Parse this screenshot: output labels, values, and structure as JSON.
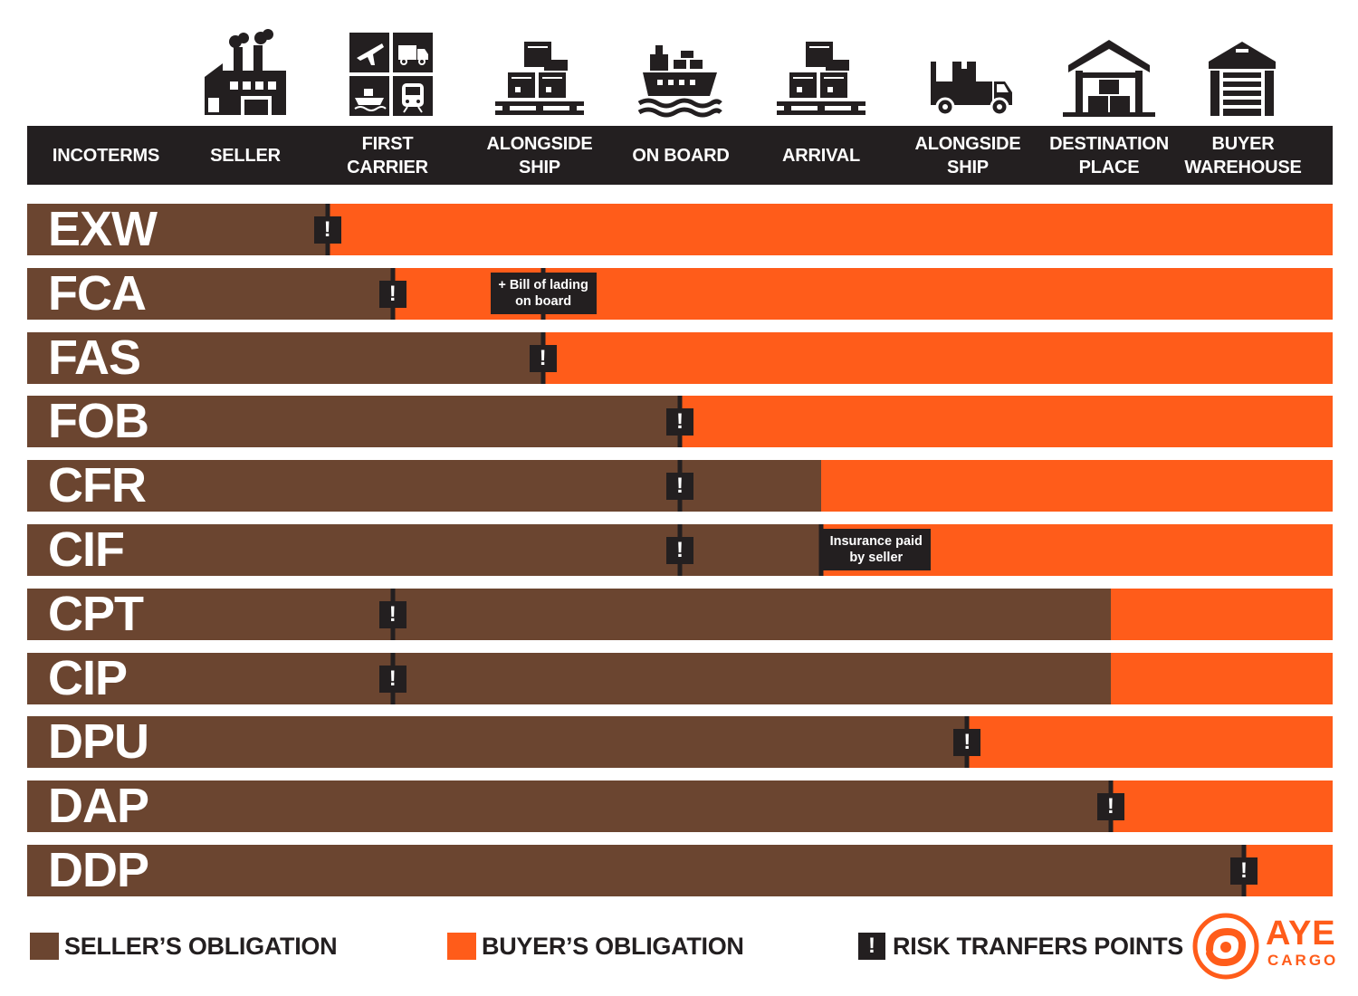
{
  "brand_colors": {
    "seller": "#6b4530",
    "buyer": "#ff5c1a",
    "dark": "#231f20"
  },
  "stages": [
    {
      "icon": "factory-icon"
    },
    {
      "icon": "transport-modes-icon"
    },
    {
      "icon": "cargo-on-pallet-icon"
    },
    {
      "icon": "cargo-ship-icon"
    },
    {
      "icon": "cargo-on-pallet-icon"
    },
    {
      "icon": "delivery-truck-icon"
    },
    {
      "icon": "warehouse-icon"
    },
    {
      "icon": "garage-warehouse-icon"
    }
  ],
  "header": {
    "columns": [
      "INCOTERMS",
      "SELLER",
      "FIRST\nCARRIER",
      "ALONGSIDE\nSHIP",
      "ON BOARD",
      "ARRIVAL",
      "ALONGSIDE\nSHIP",
      "DESTINATION\nPLACE",
      "BUYER\nWAREHOUSE"
    ]
  },
  "risk_marker": "!",
  "terms": [
    {
      "code": "EXW",
      "seller_until": 0.23,
      "risk": [
        0.23
      ]
    },
    {
      "code": "FCA",
      "seller_until": 0.28,
      "risk": [
        0.28
      ],
      "note": {
        "text": "+ Bill of lading\non board",
        "at": 0.395
      }
    },
    {
      "code": "FAS",
      "seller_until": 0.395,
      "risk": [
        0.395
      ]
    },
    {
      "code": "FOB",
      "seller_until": 0.5,
      "risk": [
        0.5
      ]
    },
    {
      "code": "CFR",
      "seller_until": 0.608,
      "risk": [
        0.5
      ]
    },
    {
      "code": "CIF",
      "seller_until": 0.608,
      "risk": [
        0.5
      ],
      "note": {
        "text": "Insurance paid\nby seller",
        "at": 0.608
      }
    },
    {
      "code": "CPT",
      "seller_until": 0.83,
      "risk": [
        0.28
      ]
    },
    {
      "code": "CIP",
      "seller_until": 0.83,
      "risk": [
        0.28
      ]
    },
    {
      "code": "DPU",
      "seller_until": 0.72,
      "risk": [
        0.72
      ]
    },
    {
      "code": "DAP",
      "seller_until": 0.83,
      "risk": [
        0.83
      ]
    },
    {
      "code": "DDP",
      "seller_until": 0.932,
      "risk": [
        0.932
      ]
    }
  ],
  "legend": {
    "seller": "SELLER’S OBLIGATION",
    "buyer": "BUYER’S OBLIGATION",
    "risk": "RISK TRANFERS POINTS"
  },
  "logo": {
    "line1": "AYE",
    "line2": "CARGO"
  }
}
